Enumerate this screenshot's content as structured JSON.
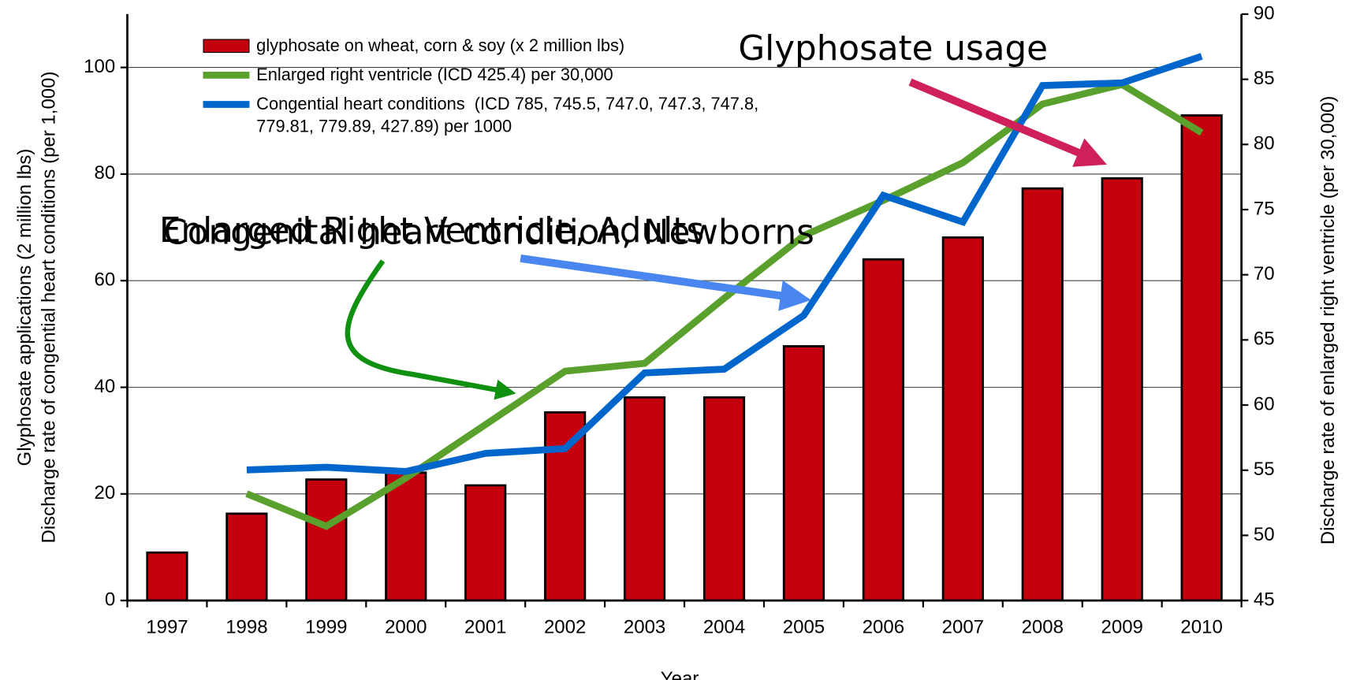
{
  "chart_data": {
    "type": "bar",
    "categories": [
      "1997",
      "1998",
      "1999",
      "2000",
      "2001",
      "2002",
      "2003",
      "2004",
      "2005",
      "2006",
      "2007",
      "2008",
      "2009",
      "2010"
    ],
    "series": [
      {
        "name": "glyphosate on wheat, corn & soy (x 2 million lbs)",
        "color": "#c4000f",
        "type": "bar",
        "values": [
          9.0,
          16.3,
          22.7,
          24.0,
          21.6,
          35.3,
          38.1,
          38.1,
          47.7,
          64.0,
          68.1,
          77.3,
          79.2,
          91.0
        ]
      },
      {
        "name": "Enlarged right ventricle (ICD 425.4) per 30,000",
        "color": "#5aa02c",
        "type": "line",
        "axis": "y2",
        "values": [
          null,
          53.2,
          50.7,
          54.4,
          58.5,
          62.6,
          63.2,
          68.2,
          73.0,
          75.7,
          78.6,
          83.1,
          84.6,
          80.9
        ]
      },
      {
        "name": "Congential heart conditions  (ICD 785, 745.5, 747.0, 747.3, 747.8, 779.81, 779.89, 427.89) per 1000",
        "color": "#0066cc",
        "type": "line",
        "values": [
          null,
          24.5,
          25.0,
          24.2,
          27.6,
          28.5,
          42.7,
          43.4,
          53.5,
          76.0,
          71.0,
          96.6,
          97.1,
          102.1
        ]
      }
    ],
    "xlabel": "Year",
    "ylabel": [
      "Glyphosate applications (2 million lbs)",
      "Discharge rate of congential heart conditions (per 1,000)"
    ],
    "y2label": "Discharge rate of enlarged right ventricle (per 30,000)",
    "ylim": [
      0,
      110
    ],
    "yticks": [
      0,
      20,
      40,
      60,
      80,
      100
    ],
    "y2lim": [
      45,
      90
    ],
    "y2ticks": [
      45,
      50,
      55,
      60,
      65,
      70,
      75,
      80,
      85,
      90
    ],
    "grid": true,
    "annotations": [
      "Glyphosate usage",
      "Enlarged Right Ventricle, Adults",
      "Congenital heart condition, Newborns"
    ]
  }
}
